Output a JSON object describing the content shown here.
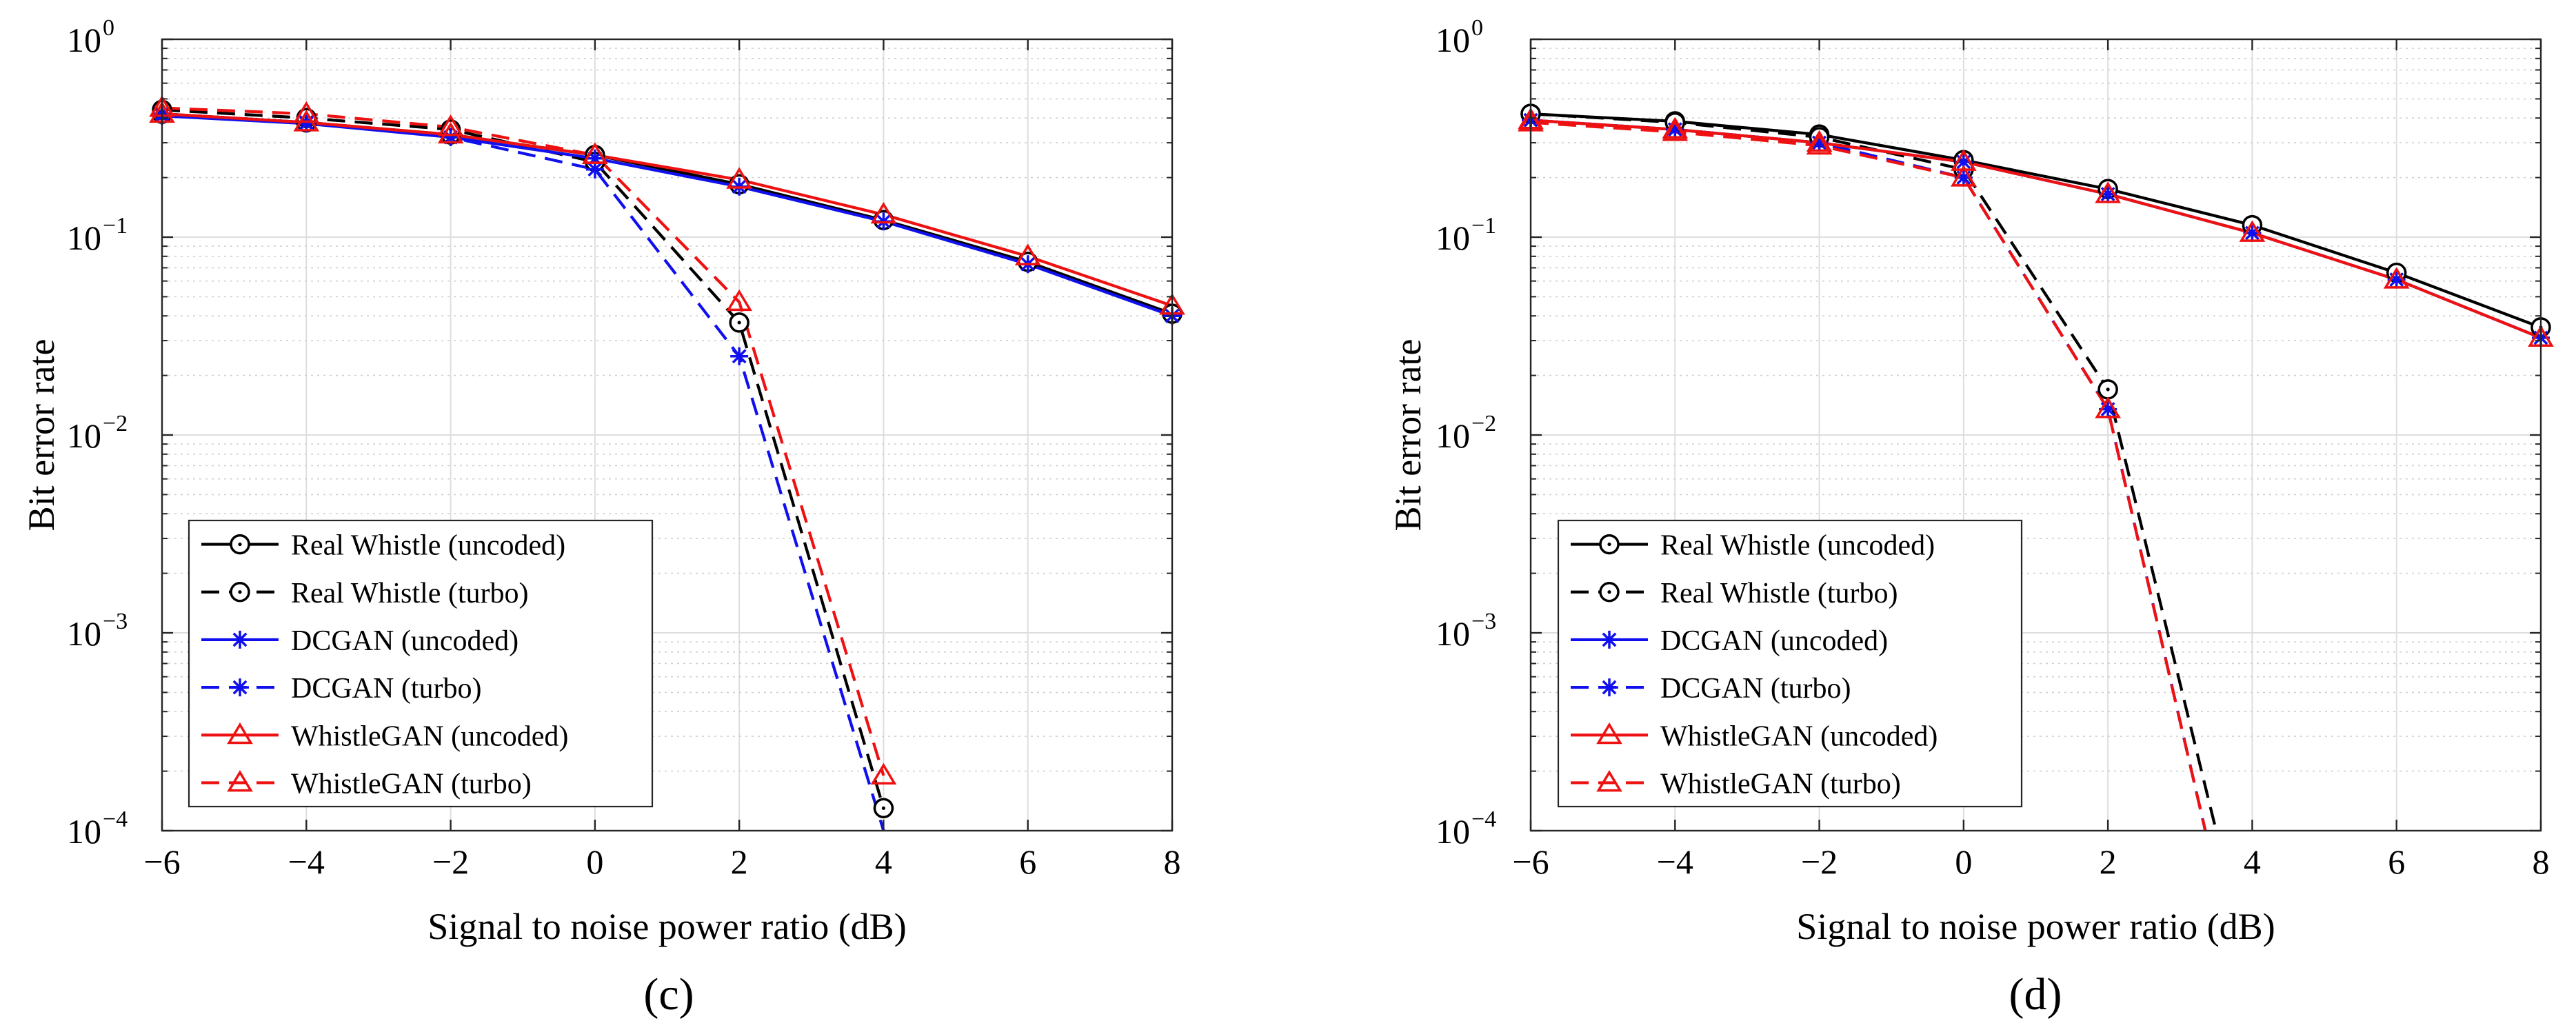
{
  "figure": {
    "panels": [
      "c",
      "d"
    ],
    "panel_labels": [
      "(c)",
      "(d)"
    ]
  },
  "chart_data": [
    {
      "type": "line",
      "panel": "(c)",
      "title": "",
      "xlabel": "Signal to noise power ratio (dB)",
      "ylabel": "Bit error rate",
      "xlim": [
        -6,
        8
      ],
      "ylim": [
        0.0001,
        1
      ],
      "yscale": "log",
      "grid": true,
      "legend_position": "bottom-left",
      "x_ticks": [
        -6,
        -4,
        -2,
        0,
        2,
        4,
        6,
        8
      ],
      "x_tick_labels": [
        "−6",
        "−4",
        "−2",
        "0",
        "2",
        "4",
        "6",
        "8"
      ],
      "y_ticks": [
        0.0001,
        0.001,
        0.01,
        0.1,
        1
      ],
      "y_tick_labels": [
        {
          "base": "10",
          "exp": "−4"
        },
        {
          "base": "10",
          "exp": "−3"
        },
        {
          "base": "10",
          "exp": "−2"
        },
        {
          "base": "10",
          "exp": "−1"
        },
        {
          "base": "10",
          "exp": "0"
        }
      ],
      "series": [
        {
          "name": "Real Whistle (uncoded)",
          "color": "#000000",
          "dash": "solid",
          "marker": "circle",
          "x": [
            -6,
            -4,
            -2,
            0,
            2,
            4,
            6,
            8
          ],
          "y": [
            0.42,
            0.38,
            0.33,
            0.26,
            0.185,
            0.122,
            0.075,
            0.041
          ]
        },
        {
          "name": "Real Whistle (turbo)",
          "color": "#000000",
          "dash": "dashed",
          "marker": "circle",
          "x": [
            -6,
            -4,
            -2,
            0,
            2,
            4
          ],
          "y": [
            0.44,
            0.4,
            0.35,
            0.24,
            0.037,
            0.00013
          ]
        },
        {
          "name": "DCGAN (uncoded)",
          "color": "#1010ee",
          "dash": "solid",
          "marker": "star",
          "x": [
            -6,
            -4,
            -2,
            0,
            2,
            4,
            6,
            8
          ],
          "y": [
            0.41,
            0.375,
            0.32,
            0.25,
            0.18,
            0.12,
            0.073,
            0.04
          ]
        },
        {
          "name": "DCGAN (turbo)",
          "color": "#1010ee",
          "dash": "dashed",
          "marker": "star",
          "x": [
            -6,
            -4,
            -2,
            0,
            2,
            4
          ],
          "y": [
            0.42,
            0.38,
            0.32,
            0.22,
            0.025,
            0.0001
          ]
        },
        {
          "name": "WhistleGAN (uncoded)",
          "color": "#ee1111",
          "dash": "solid",
          "marker": "triangle",
          "x": [
            -6,
            -4,
            -2,
            0,
            2,
            4,
            6,
            8
          ],
          "y": [
            0.42,
            0.38,
            0.33,
            0.26,
            0.195,
            0.13,
            0.08,
            0.045
          ]
        },
        {
          "name": "WhistleGAN (turbo)",
          "color": "#ee1111",
          "dash": "dashed",
          "marker": "triangle",
          "x": [
            -6,
            -4,
            -2,
            0,
            2,
            4
          ],
          "y": [
            0.45,
            0.42,
            0.36,
            0.26,
            0.047,
            0.00019
          ]
        }
      ]
    },
    {
      "type": "line",
      "panel": "(d)",
      "title": "",
      "xlabel": "Signal to noise power ratio (dB)",
      "ylabel": "Bit error rate",
      "xlim": [
        -6,
        8
      ],
      "ylim": [
        0.0001,
        1
      ],
      "yscale": "log",
      "grid": true,
      "legend_position": "bottom-left",
      "x_ticks": [
        -6,
        -4,
        -2,
        0,
        2,
        4,
        6,
        8
      ],
      "x_tick_labels": [
        "−6",
        "−4",
        "−2",
        "0",
        "2",
        "4",
        "6",
        "8"
      ],
      "y_ticks": [
        0.0001,
        0.001,
        0.01,
        0.1,
        1
      ],
      "y_tick_labels": [
        {
          "base": "10",
          "exp": "−4"
        },
        {
          "base": "10",
          "exp": "−3"
        },
        {
          "base": "10",
          "exp": "−2"
        },
        {
          "base": "10",
          "exp": "−1"
        },
        {
          "base": "10",
          "exp": "0"
        }
      ],
      "series": [
        {
          "name": "Real Whistle (uncoded)",
          "color": "#000000",
          "dash": "solid",
          "marker": "circle",
          "x": [
            -6,
            -4,
            -2,
            0,
            2,
            4,
            6,
            8
          ],
          "y": [
            0.42,
            0.385,
            0.33,
            0.245,
            0.175,
            0.115,
            0.066,
            0.035
          ]
        },
        {
          "name": "Real Whistle (turbo)",
          "color": "#000000",
          "dash": "dashed",
          "marker": "circle",
          "x": [
            -6,
            -4,
            -2,
            0,
            2,
            3.5
          ],
          "y": [
            0.42,
            0.38,
            0.32,
            0.22,
            0.017,
            0.0001
          ]
        },
        {
          "name": "DCGAN (uncoded)",
          "color": "#1010ee",
          "dash": "solid",
          "marker": "star",
          "x": [
            -6,
            -4,
            -2,
            0,
            2,
            4,
            6,
            8
          ],
          "y": [
            0.39,
            0.35,
            0.3,
            0.24,
            0.165,
            0.105,
            0.061,
            0.031
          ]
        },
        {
          "name": "DCGAN (turbo)",
          "color": "#1010ee",
          "dash": "dashed",
          "marker": "star",
          "x": [
            -6,
            -4,
            -2,
            0,
            2,
            3.35
          ],
          "y": [
            0.39,
            0.35,
            0.3,
            0.2,
            0.0135,
            0.0001
          ]
        },
        {
          "name": "WhistleGAN (uncoded)",
          "color": "#ee1111",
          "dash": "solid",
          "marker": "triangle",
          "x": [
            -6,
            -4,
            -2,
            0,
            2,
            4,
            6,
            8
          ],
          "y": [
            0.39,
            0.35,
            0.3,
            0.24,
            0.165,
            0.105,
            0.061,
            0.031
          ]
        },
        {
          "name": "WhistleGAN (turbo)",
          "color": "#ee1111",
          "dash": "dashed",
          "marker": "triangle",
          "x": [
            -6,
            -4,
            -2,
            0,
            2,
            3.35
          ],
          "y": [
            0.38,
            0.34,
            0.29,
            0.2,
            0.0135,
            0.0001
          ]
        }
      ]
    }
  ]
}
